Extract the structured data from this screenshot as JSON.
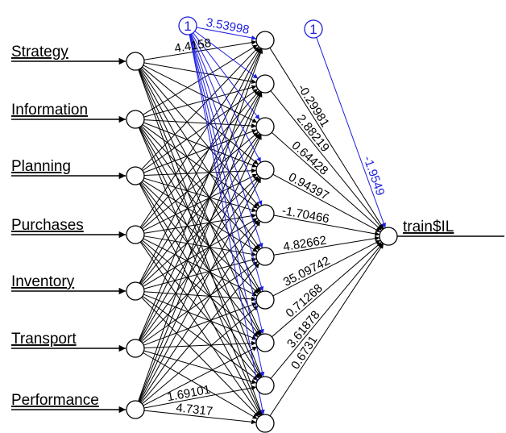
{
  "inputs": [
    "Strategy",
    "Information",
    "Planning",
    "Purchases",
    "Inventory",
    "Transport",
    "Performance"
  ],
  "output": "train$IL",
  "bias_label": "1",
  "hidden_count": 10,
  "output_weights": [
    "-0.29981",
    "2.88219",
    "0.64428",
    "0.94397",
    "-1.70466",
    "4.82662",
    "35.09742",
    "0.71268",
    "3.61878",
    "0.6731"
  ],
  "output_bias_weight": "-1.9549",
  "hidden_bias_weight_visible": "3.53998",
  "input_weight_fragments": [
    "4.4158",
    "1.69101",
    "4.7317"
  ],
  "colors": {
    "weights": "#000000",
    "bias": "#1f1fe0",
    "node_fill": "#ffffff"
  }
}
